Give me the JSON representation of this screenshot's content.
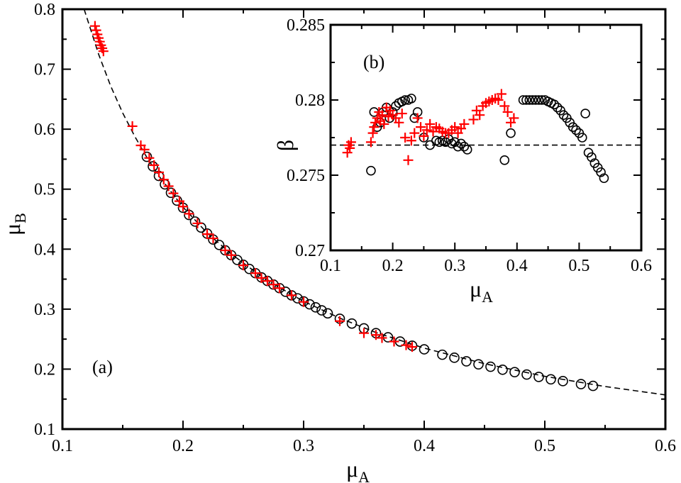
{
  "chart_data": [
    {
      "panel": "main",
      "type": "scatter",
      "label": "(a)",
      "xlabel": "μ",
      "xlabel_sub": "A",
      "ylabel": "μ",
      "ylabel_sub": "B",
      "xlim": [
        0.1,
        0.6
      ],
      "ylim": [
        0.1,
        0.8
      ],
      "xticks": [
        0.1,
        0.2,
        0.3,
        0.4,
        0.5,
        0.6
      ],
      "yticks": [
        0.1,
        0.2,
        0.3,
        0.4,
        0.5,
        0.6,
        0.7,
        0.8
      ],
      "xtick_labels": [
        "0.1",
        "0.2",
        "0.3",
        "0.4",
        "0.5",
        "0.6"
      ],
      "ytick_labels": [
        "0.1",
        "0.2",
        "0.3",
        "0.4",
        "0.5",
        "0.6",
        "0.7",
        "0.8"
      ],
      "colors": {
        "circles": "#000000",
        "crosses": "#ff0000",
        "curve": "#000000"
      },
      "series": [
        {
          "name": "circles",
          "marker": "circle",
          "x": [
            0.17,
            0.175,
            0.18,
            0.185,
            0.19,
            0.195,
            0.2,
            0.205,
            0.21,
            0.215,
            0.22,
            0.225,
            0.23,
            0.235,
            0.24,
            0.245,
            0.25,
            0.255,
            0.26,
            0.265,
            0.27,
            0.275,
            0.28,
            0.285,
            0.29,
            0.295,
            0.3,
            0.305,
            0.31,
            0.315,
            0.32,
            0.33,
            0.34,
            0.35,
            0.36,
            0.37,
            0.38,
            0.39,
            0.4,
            0.415,
            0.425,
            0.435,
            0.445,
            0.455,
            0.465,
            0.475,
            0.485,
            0.495,
            0.505,
            0.515,
            0.53,
            0.54
          ],
          "y": [
            0.554,
            0.538,
            0.522,
            0.508,
            0.494,
            0.481,
            0.469,
            0.457,
            0.446,
            0.436,
            0.426,
            0.416,
            0.407,
            0.398,
            0.39,
            0.382,
            0.374,
            0.367,
            0.36,
            0.353,
            0.347,
            0.341,
            0.335,
            0.329,
            0.323,
            0.318,
            0.313,
            0.308,
            0.303,
            0.298,
            0.293,
            0.284,
            0.276,
            0.268,
            0.26,
            0.253,
            0.246,
            0.239,
            0.233,
            0.224,
            0.219,
            0.213,
            0.208,
            0.204,
            0.199,
            0.195,
            0.191,
            0.187,
            0.183,
            0.18,
            0.175,
            0.172
          ]
        },
        {
          "name": "crosses",
          "marker": "plus",
          "x": [
            0.127,
            0.128,
            0.129,
            0.13,
            0.131,
            0.132,
            0.133,
            0.134,
            0.158,
            0.165,
            0.168,
            0.172,
            0.176,
            0.18,
            0.184,
            0.188,
            0.192,
            0.197,
            0.2,
            0.205,
            0.212,
            0.22,
            0.225,
            0.235,
            0.24,
            0.25,
            0.26,
            0.265,
            0.27,
            0.275,
            0.28,
            0.29,
            0.3,
            0.33,
            0.35,
            0.36,
            0.365,
            0.375,
            0.385,
            0.39
          ],
          "y": [
            0.772,
            0.765,
            0.758,
            0.752,
            0.746,
            0.74,
            0.735,
            0.73,
            0.605,
            0.573,
            0.566,
            0.552,
            0.54,
            0.528,
            0.516,
            0.505,
            0.493,
            0.48,
            0.471,
            0.459,
            0.443,
            0.425,
            0.418,
            0.398,
            0.39,
            0.373,
            0.36,
            0.352,
            0.347,
            0.341,
            0.335,
            0.323,
            0.312,
            0.28,
            0.26,
            0.257,
            0.252,
            0.246,
            0.24,
            0.237
          ]
        },
        {
          "name": "curve",
          "marker": "dashed-line",
          "x": [
            0.118,
            0.13,
            0.14,
            0.15,
            0.16,
            0.17,
            0.18,
            0.2,
            0.22,
            0.24,
            0.26,
            0.28,
            0.3,
            0.33,
            0.36,
            0.4,
            0.45,
            0.5,
            0.55,
            0.6
          ],
          "y": [
            0.8,
            0.725,
            0.672,
            0.627,
            0.588,
            0.553,
            0.522,
            0.47,
            0.427,
            0.392,
            0.362,
            0.336,
            0.313,
            0.285,
            0.261,
            0.235,
            0.209,
            0.188,
            0.171,
            0.157
          ]
        }
      ]
    },
    {
      "panel": "inset",
      "type": "scatter",
      "label": "(b)",
      "xlabel": "μ",
      "xlabel_sub": "A",
      "ylabel": "β",
      "xlim": [
        0.1,
        0.6
      ],
      "ylim": [
        0.27,
        0.285
      ],
      "xticks": [
        0.1,
        0.2,
        0.3,
        0.4,
        0.5,
        0.6
      ],
      "yticks": [
        0.27,
        0.275,
        0.28,
        0.285
      ],
      "xtick_labels": [
        "0.1",
        "0.2",
        "0.3",
        "0.4",
        "0.5",
        "0.6"
      ],
      "ytick_labels": [
        "0.27",
        "0.275",
        "0.28",
        "0.285"
      ],
      "reference_line": 0.277,
      "colors": {
        "circles": "#000000",
        "crosses": "#ff0000",
        "reference": "#000000"
      },
      "series": [
        {
          "name": "circles",
          "marker": "circle",
          "x": [
            0.165,
            0.17,
            0.175,
            0.18,
            0.185,
            0.19,
            0.195,
            0.2,
            0.205,
            0.21,
            0.215,
            0.22,
            0.225,
            0.23,
            0.235,
            0.24,
            0.25,
            0.26,
            0.27,
            0.275,
            0.28,
            0.285,
            0.29,
            0.295,
            0.3,
            0.305,
            0.31,
            0.315,
            0.32,
            0.38,
            0.39,
            0.41,
            0.415,
            0.42,
            0.425,
            0.43,
            0.435,
            0.44,
            0.445,
            0.45,
            0.455,
            0.46,
            0.465,
            0.47,
            0.475,
            0.48,
            0.485,
            0.49,
            0.495,
            0.5,
            0.505,
            0.51,
            0.515,
            0.52,
            0.525,
            0.53,
            0.535,
            0.54
          ],
          "y": [
            0.2753,
            0.2792,
            0.2782,
            0.2785,
            0.2792,
            0.2795,
            0.2788,
            0.2792,
            0.2796,
            0.2798,
            0.2799,
            0.28,
            0.28,
            0.2801,
            0.2788,
            0.2792,
            0.2775,
            0.277,
            0.2773,
            0.2772,
            0.2773,
            0.2772,
            0.2774,
            0.2771,
            0.2772,
            0.2769,
            0.2771,
            0.2769,
            0.2767,
            0.276,
            0.2778,
            0.28,
            0.28,
            0.28,
            0.28,
            0.28,
            0.28,
            0.28,
            0.28,
            0.2799,
            0.2798,
            0.2797,
            0.2795,
            0.2793,
            0.279,
            0.2788,
            0.2785,
            0.2782,
            0.278,
            0.2778,
            0.2775,
            0.2791,
            0.2765,
            0.2762,
            0.2758,
            0.2755,
            0.2752,
            0.2748
          ]
        },
        {
          "name": "crosses",
          "marker": "plus",
          "x": [
            0.127,
            0.129,
            0.131,
            0.133,
            0.165,
            0.168,
            0.17,
            0.172,
            0.175,
            0.178,
            0.18,
            0.183,
            0.186,
            0.19,
            0.193,
            0.196,
            0.2,
            0.205,
            0.21,
            0.215,
            0.22,
            0.225,
            0.23,
            0.235,
            0.24,
            0.245,
            0.25,
            0.255,
            0.26,
            0.265,
            0.27,
            0.275,
            0.28,
            0.285,
            0.29,
            0.295,
            0.3,
            0.305,
            0.31,
            0.315,
            0.33,
            0.335,
            0.34,
            0.345,
            0.35,
            0.355,
            0.36,
            0.365,
            0.37,
            0.375,
            0.38,
            0.385,
            0.39,
            0.395
          ],
          "y": [
            0.2765,
            0.277,
            0.2768,
            0.2772,
            0.2772,
            0.2778,
            0.2782,
            0.2785,
            0.2788,
            0.2792,
            0.2786,
            0.279,
            0.2784,
            0.2795,
            0.2789,
            0.2793,
            0.279,
            0.2788,
            0.2785,
            0.2791,
            0.2775,
            0.276,
            0.2773,
            0.2778,
            0.2788,
            0.2782,
            0.2776,
            0.278,
            0.2784,
            0.2779,
            0.2782,
            0.2781,
            0.2779,
            0.2778,
            0.2778,
            0.278,
            0.2782,
            0.2778,
            0.2781,
            0.2784,
            0.2787,
            0.2793,
            0.279,
            0.2796,
            0.2798,
            0.2799,
            0.28,
            0.2801,
            0.28,
            0.2804,
            0.2796,
            0.2792,
            0.2785,
            0.2788
          ]
        }
      ]
    }
  ]
}
